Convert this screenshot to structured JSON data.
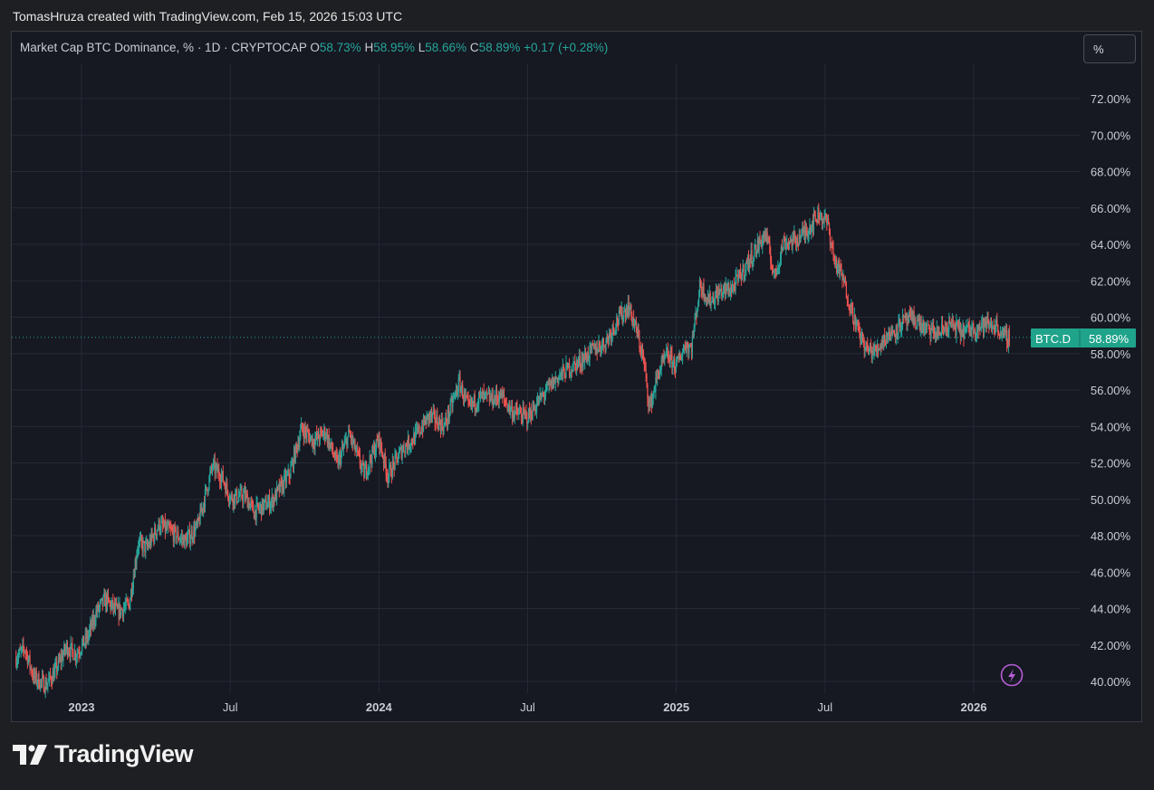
{
  "caption": "TomasHruza created with TradingView.com, Feb 15, 2026 15:03 UTC",
  "legend": {
    "title": "Market Cap BTC Dominance, % · 1D · CRYPTOCAP",
    "o_label": "O",
    "o_value": "58.73%",
    "h_label": "H",
    "h_value": "58.95%",
    "l_label": "L",
    "l_value": "58.66%",
    "c_label": "C",
    "c_value": "58.89%",
    "change": "+0.17 (+0.28%)"
  },
  "scale_button": "%",
  "price_tag": {
    "symbol": "BTC.D",
    "value": "58.89%"
  },
  "brand_name": "TradingView",
  "colors": {
    "up": "#26a69a",
    "down": "#ef5350",
    "bg": "#161822",
    "grid": "#262a36"
  },
  "chart_data": {
    "type": "candlestick",
    "y_range": [
      39.5,
      73.5
    ],
    "y_ticks": [
      "72.00%",
      "70.00%",
      "68.00%",
      "66.00%",
      "64.00%",
      "62.00%",
      "60.00%",
      "58.00%",
      "56.00%",
      "54.00%",
      "52.00%",
      "50.00%",
      "48.00%",
      "46.00%",
      "44.00%",
      "42.00%",
      "40.00%"
    ],
    "x_ticks": [
      {
        "label": "2023",
        "t": 2023.0,
        "bold": true
      },
      {
        "label": "Jul",
        "t": 2023.5,
        "bold": false
      },
      {
        "label": "2024",
        "t": 2024.0,
        "bold": true
      },
      {
        "label": "Jul",
        "t": 2024.5,
        "bold": false
      },
      {
        "label": "2025",
        "t": 2025.0,
        "bold": true
      },
      {
        "label": "Jul",
        "t": 2025.5,
        "bold": false
      },
      {
        "label": "2026",
        "t": 2026.0,
        "bold": true
      }
    ],
    "x_range": [
      2022.77,
      2026.55
    ],
    "last_t": 2026.12,
    "last_close": 58.89,
    "series": [
      {
        "t": 2022.78,
        "v": 41.3
      },
      {
        "t": 2022.81,
        "v": 41.8
      },
      {
        "t": 2022.84,
        "v": 40.2
      },
      {
        "t": 2022.88,
        "v": 39.8
      },
      {
        "t": 2022.91,
        "v": 40.5
      },
      {
        "t": 2022.95,
        "v": 41.9
      },
      {
        "t": 2022.98,
        "v": 41.5
      },
      {
        "t": 2023.02,
        "v": 42.4
      },
      {
        "t": 2023.05,
        "v": 43.8
      },
      {
        "t": 2023.08,
        "v": 44.5
      },
      {
        "t": 2023.12,
        "v": 43.8
      },
      {
        "t": 2023.16,
        "v": 44.2
      },
      {
        "t": 2023.19,
        "v": 47.6
      },
      {
        "t": 2023.22,
        "v": 47.3
      },
      {
        "t": 2023.26,
        "v": 48.6
      },
      {
        "t": 2023.3,
        "v": 48.2
      },
      {
        "t": 2023.35,
        "v": 47.7
      },
      {
        "t": 2023.39,
        "v": 48.5
      },
      {
        "t": 2023.44,
        "v": 51.8
      },
      {
        "t": 2023.47,
        "v": 51.3
      },
      {
        "t": 2023.5,
        "v": 50.1
      },
      {
        "t": 2023.55,
        "v": 50.2
      },
      {
        "t": 2023.58,
        "v": 49.3
      },
      {
        "t": 2023.64,
        "v": 49.9
      },
      {
        "t": 2023.7,
        "v": 51.4
      },
      {
        "t": 2023.74,
        "v": 53.9
      },
      {
        "t": 2023.78,
        "v": 53.2
      },
      {
        "t": 2023.82,
        "v": 53.7
      },
      {
        "t": 2023.86,
        "v": 51.9
      },
      {
        "t": 2023.9,
        "v": 53.6
      },
      {
        "t": 2023.95,
        "v": 51.4
      },
      {
        "t": 2024.0,
        "v": 53.3
      },
      {
        "t": 2024.03,
        "v": 51.3
      },
      {
        "t": 2024.08,
        "v": 52.8
      },
      {
        "t": 2024.12,
        "v": 53.4
      },
      {
        "t": 2024.17,
        "v": 54.6
      },
      {
        "t": 2024.22,
        "v": 54.0
      },
      {
        "t": 2024.27,
        "v": 56.4
      },
      {
        "t": 2024.3,
        "v": 55.0
      },
      {
        "t": 2024.34,
        "v": 55.6
      },
      {
        "t": 2024.38,
        "v": 55.5
      },
      {
        "t": 2024.41,
        "v": 55.7
      },
      {
        "t": 2024.45,
        "v": 54.8
      },
      {
        "t": 2024.5,
        "v": 54.5
      },
      {
        "t": 2024.56,
        "v": 55.9
      },
      {
        "t": 2024.6,
        "v": 56.7
      },
      {
        "t": 2024.64,
        "v": 57.2
      },
      {
        "t": 2024.68,
        "v": 57.6
      },
      {
        "t": 2024.72,
        "v": 58.2
      },
      {
        "t": 2024.76,
        "v": 58.6
      },
      {
        "t": 2024.8,
        "v": 59.8
      },
      {
        "t": 2024.84,
        "v": 60.6
      },
      {
        "t": 2024.87,
        "v": 59.0
      },
      {
        "t": 2024.89,
        "v": 57.6
      },
      {
        "t": 2024.91,
        "v": 55.0
      },
      {
        "t": 2024.94,
        "v": 57.0
      },
      {
        "t": 2024.97,
        "v": 57.9
      },
      {
        "t": 2025.0,
        "v": 57.3
      },
      {
        "t": 2025.03,
        "v": 58.5
      },
      {
        "t": 2025.05,
        "v": 58.3
      },
      {
        "t": 2025.08,
        "v": 61.8
      },
      {
        "t": 2025.11,
        "v": 60.9
      },
      {
        "t": 2025.15,
        "v": 61.4
      },
      {
        "t": 2025.19,
        "v": 61.6
      },
      {
        "t": 2025.23,
        "v": 62.7
      },
      {
        "t": 2025.27,
        "v": 63.8
      },
      {
        "t": 2025.3,
        "v": 64.6
      },
      {
        "t": 2025.33,
        "v": 62.2
      },
      {
        "t": 2025.36,
        "v": 64.1
      },
      {
        "t": 2025.4,
        "v": 64.2
      },
      {
        "t": 2025.44,
        "v": 64.8
      },
      {
        "t": 2025.48,
        "v": 65.7
      },
      {
        "t": 2025.51,
        "v": 65.1
      },
      {
        "t": 2025.53,
        "v": 63.2
      },
      {
        "t": 2025.56,
        "v": 62.1
      },
      {
        "t": 2025.58,
        "v": 60.9
      },
      {
        "t": 2025.61,
        "v": 59.3
      },
      {
        "t": 2025.64,
        "v": 58.2
      },
      {
        "t": 2025.67,
        "v": 58.1
      },
      {
        "t": 2025.7,
        "v": 58.9
      },
      {
        "t": 2025.73,
        "v": 59.2
      },
      {
        "t": 2025.76,
        "v": 59.7
      },
      {
        "t": 2025.8,
        "v": 59.9
      },
      {
        "t": 2025.84,
        "v": 59.3
      },
      {
        "t": 2025.88,
        "v": 59.1
      },
      {
        "t": 2025.92,
        "v": 59.6
      },
      {
        "t": 2025.96,
        "v": 59.2
      },
      {
        "t": 2026.0,
        "v": 59.4
      },
      {
        "t": 2026.04,
        "v": 59.6
      },
      {
        "t": 2026.08,
        "v": 59.5
      },
      {
        "t": 2026.1,
        "v": 58.9
      },
      {
        "t": 2026.12,
        "v": 58.89
      }
    ]
  }
}
